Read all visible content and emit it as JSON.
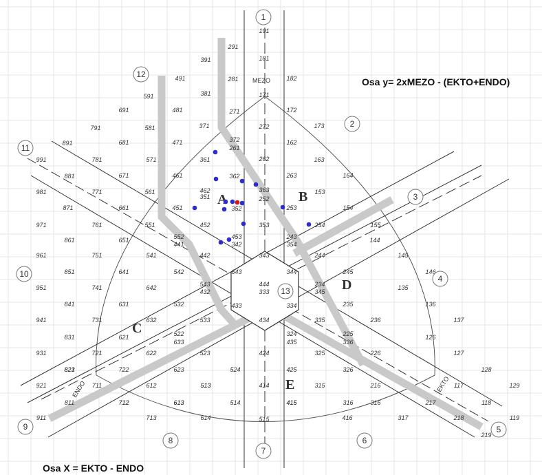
{
  "axis_y_title": "Osa y= 2xMEZO - (EKTO+ENDO)",
  "axis_x_title": "Osa X = EKTO - ENDO",
  "band_labels": {
    "mezo": "MEZO",
    "ekto": "EKTO",
    "endo": "ENDO"
  },
  "section_labels": {
    "A": "A",
    "B": "B",
    "C": "C",
    "D": "D",
    "E": "E"
  },
  "circle_numbers": [
    "1",
    "2",
    "3",
    "4",
    "5",
    "6",
    "7",
    "8",
    "9",
    "10",
    "11",
    "12",
    "13"
  ],
  "cell_labels": [
    "191",
    "181",
    "171",
    "291",
    "281",
    "271",
    "391",
    "381",
    "371",
    "491",
    "481",
    "471",
    "591",
    "581",
    "571",
    "691",
    "681",
    "671",
    "791",
    "781",
    "771",
    "891",
    "881",
    "871",
    "991",
    "981",
    "971",
    "182",
    "172",
    "173",
    "162",
    "163",
    "164",
    "153",
    "154",
    "155",
    "144",
    "145",
    "146",
    "135",
    "136",
    "137",
    "126",
    "127",
    "128",
    "129",
    "117",
    "118",
    "119",
    "219",
    "218",
    "217",
    "316",
    "317",
    "416",
    "415",
    "515",
    "514",
    "513",
    "614",
    "613",
    "713",
    "712",
    "711",
    "811",
    "911",
    "821",
    "921",
    "931",
    "941",
    "951",
    "961",
    "372",
    "261",
    "262",
    "361",
    "362",
    "363",
    "252",
    "253",
    "254",
    "263",
    "272",
    "352",
    "351",
    "353",
    "342",
    "453",
    "452",
    "451",
    "461",
    "462",
    "561",
    "661",
    "761",
    "861",
    "551",
    "651",
    "751",
    "851",
    "552",
    "441",
    "442",
    "541",
    "641",
    "741",
    "841",
    "542",
    "642",
    "543",
    "432",
    "532",
    "631",
    "731",
    "831",
    "632",
    "621",
    "721",
    "533",
    "522",
    "633",
    "622",
    "722",
    "623",
    "523",
    "524",
    "612",
    "712b",
    "613",
    "513b",
    "424",
    "425",
    "414",
    "415b",
    "315",
    "316b",
    "325",
    "326",
    "216",
    "226",
    "225",
    "336",
    "235",
    "236",
    "234",
    "245",
    "345",
    "344",
    "343",
    "243",
    "354",
    "244",
    "444",
    "333",
    "334",
    "433",
    "434",
    "324",
    "335",
    "435",
    "643",
    "823"
  ],
  "legend_points": {
    "blue_count": 16,
    "red_count": 1
  }
}
